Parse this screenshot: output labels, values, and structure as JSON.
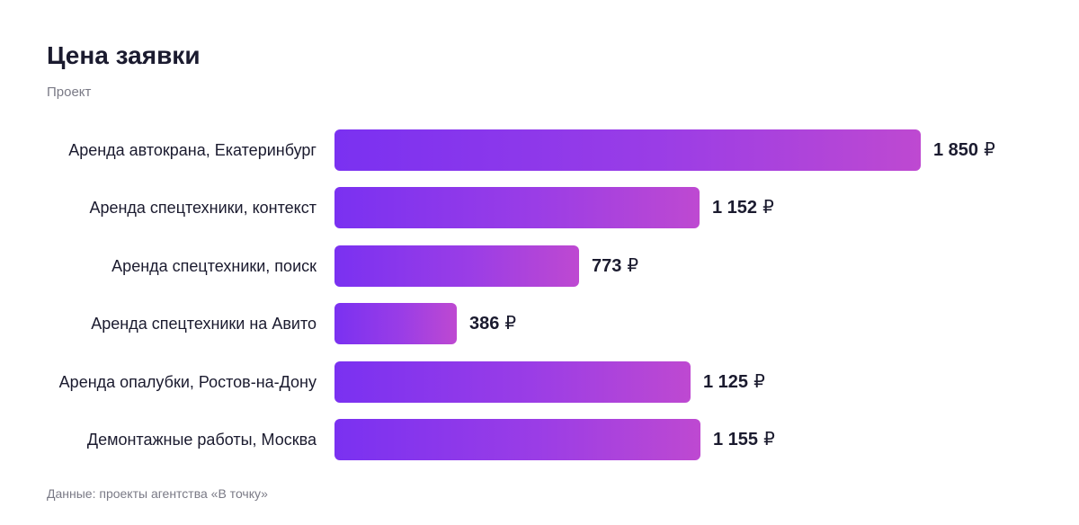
{
  "header": {
    "title": "Цена заявки",
    "subtitle": "Проект"
  },
  "footnote": "Данные: проекты агентства «В точку»",
  "chart_data": {
    "type": "bar",
    "orientation": "horizontal",
    "title": "Цена заявки",
    "subtitle": "Проект",
    "categories": [
      "Аренда автокрана, Екатеринбург",
      "Аренда спецтехники, контекст",
      "Аренда спецтехники, поиск",
      "Аренда спецтехники на Авито",
      "Аренда опалубки, Ростов-на-Дону",
      "Демонтажные работы, Москва"
    ],
    "values": [
      1850,
      1152,
      773,
      386,
      1125,
      1155
    ],
    "value_labels": [
      "1 850",
      "1 152",
      "773",
      "386",
      "1 125",
      "1 155"
    ],
    "unit": "₽",
    "xlim": [
      0,
      1850
    ],
    "grid": false,
    "legend": "none",
    "colors": {
      "bar_start": "#7a31f1",
      "bar_end": "#be49d1"
    }
  }
}
